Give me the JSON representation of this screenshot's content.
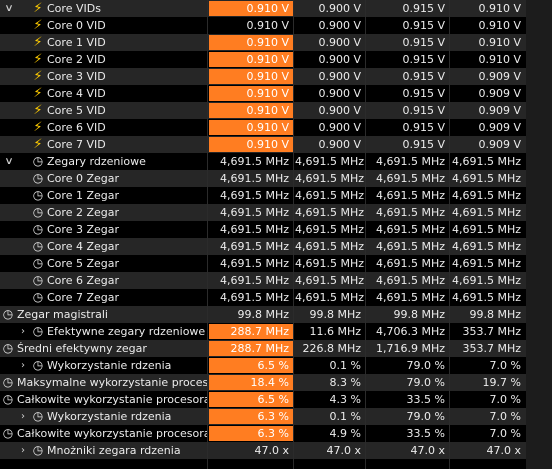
{
  "colors": {
    "highlight": "#ff7d21",
    "bolt": "#ffcc00",
    "row_odd": "#262626",
    "row_even": "#000000"
  },
  "rows": [
    {
      "label": "Core VIDs",
      "indent": 2,
      "icon": "bolt",
      "chevron": "down",
      "vals": [
        "0.910 V",
        "0.900 V",
        "0.915 V",
        "0.910 V"
      ],
      "hl": true
    },
    {
      "label": "Core 0 VID",
      "indent": 3,
      "icon": "bolt",
      "vals": [
        "0.910 V",
        "0.900 V",
        "0.915 V",
        "0.910 V"
      ],
      "hl": false
    },
    {
      "label": "Core 1 VID",
      "indent": 3,
      "icon": "bolt",
      "vals": [
        "0.910 V",
        "0.900 V",
        "0.915 V",
        "0.910 V"
      ],
      "hl": true
    },
    {
      "label": "Core 2 VID",
      "indent": 3,
      "icon": "bolt",
      "vals": [
        "0.910 V",
        "0.900 V",
        "0.915 V",
        "0.910 V"
      ],
      "hl": true
    },
    {
      "label": "Core 3 VID",
      "indent": 3,
      "icon": "bolt",
      "vals": [
        "0.910 V",
        "0.900 V",
        "0.915 V",
        "0.909 V"
      ],
      "hl": true
    },
    {
      "label": "Core 4 VID",
      "indent": 3,
      "icon": "bolt",
      "vals": [
        "0.910 V",
        "0.900 V",
        "0.915 V",
        "0.909 V"
      ],
      "hl": true
    },
    {
      "label": "Core 5 VID",
      "indent": 3,
      "icon": "bolt",
      "vals": [
        "0.910 V",
        "0.900 V",
        "0.915 V",
        "0.909 V"
      ],
      "hl": true
    },
    {
      "label": "Core 6 VID",
      "indent": 3,
      "icon": "bolt",
      "vals": [
        "0.910 V",
        "0.900 V",
        "0.915 V",
        "0.909 V"
      ],
      "hl": true
    },
    {
      "label": "Core 7 VID",
      "indent": 3,
      "icon": "bolt",
      "vals": [
        "0.910 V",
        "0.900 V",
        "0.915 V",
        "0.909 V"
      ],
      "hl": true
    },
    {
      "label": "Zegary rdzeniowe",
      "indent": 2,
      "icon": "clock",
      "chevron": "down",
      "vals": [
        "4,691.5 MHz",
        "4,691.5 MHz",
        "4,691.5 MHz",
        "4,691.5 MHz"
      ],
      "hl": false
    },
    {
      "label": "Core 0 Zegar",
      "indent": 3,
      "icon": "clock",
      "vals": [
        "4,691.5 MHz",
        "4,691.5 MHz",
        "4,691.5 MHz",
        "4,691.5 MHz"
      ],
      "hl": false
    },
    {
      "label": "Core 1 Zegar",
      "indent": 3,
      "icon": "clock",
      "vals": [
        "4,691.5 MHz",
        "4,691.5 MHz",
        "4,691.5 MHz",
        "4,691.5 MHz"
      ],
      "hl": false
    },
    {
      "label": "Core 2 Zegar",
      "indent": 3,
      "icon": "clock",
      "vals": [
        "4,691.5 MHz",
        "4,691.5 MHz",
        "4,691.5 MHz",
        "4,691.5 MHz"
      ],
      "hl": false
    },
    {
      "label": "Core 3 Zegar",
      "indent": 3,
      "icon": "clock",
      "vals": [
        "4,691.5 MHz",
        "4,691.5 MHz",
        "4,691.5 MHz",
        "4,691.5 MHz"
      ],
      "hl": false
    },
    {
      "label": "Core 4 Zegar",
      "indent": 3,
      "icon": "clock",
      "vals": [
        "4,691.5 MHz",
        "4,691.5 MHz",
        "4,691.5 MHz",
        "4,691.5 MHz"
      ],
      "hl": false
    },
    {
      "label": "Core 5 Zegar",
      "indent": 3,
      "icon": "clock",
      "vals": [
        "4,691.5 MHz",
        "4,691.5 MHz",
        "4,691.5 MHz",
        "4,691.5 MHz"
      ],
      "hl": false
    },
    {
      "label": "Core 6 Zegar",
      "indent": 3,
      "icon": "clock",
      "vals": [
        "4,691.5 MHz",
        "4,691.5 MHz",
        "4,691.5 MHz",
        "4,691.5 MHz"
      ],
      "hl": false
    },
    {
      "label": "Core 7 Zegar",
      "indent": 3,
      "icon": "clock",
      "vals": [
        "4,691.5 MHz",
        "4,691.5 MHz",
        "4,691.5 MHz",
        "4,691.5 MHz"
      ],
      "hl": false
    },
    {
      "label": "Zegar magistrali",
      "indent": 0,
      "icon": "clock",
      "vals": [
        "99.8 MHz",
        "99.8 MHz",
        "99.8 MHz",
        "99.8 MHz"
      ],
      "hl": false
    },
    {
      "label": "Efektywne zegary rdzeniowe",
      "indent": 1,
      "icon": "clock",
      "chevron": "right",
      "vals": [
        "288.7 MHz",
        "11.6 MHz",
        "4,706.3 MHz",
        "353.7 MHz"
      ],
      "hl": true
    },
    {
      "label": "Średni efektywny zegar",
      "indent": 0,
      "icon": "clock",
      "vals": [
        "288.7 MHz",
        "226.8 MHz",
        "1,716.9 MHz",
        "353.7 MHz"
      ],
      "hl": true
    },
    {
      "label": "Wykorzystanie rdzenia",
      "indent": 1,
      "icon": "clock",
      "chevron": "right",
      "vals": [
        "6.5 %",
        "0.1 %",
        "79.0 %",
        "7.0 %"
      ],
      "hl": true
    },
    {
      "label": "Maksymalne wykorzystanie procesora",
      "indent": 0,
      "icon": "clock",
      "vals": [
        "18.4 %",
        "8.3 %",
        "79.0 %",
        "19.7 %"
      ],
      "hl": true
    },
    {
      "label": "Całkowite wykorzystanie procesora",
      "indent": 0,
      "icon": "clock",
      "vals": [
        "6.5 %",
        "4.3 %",
        "33.5 %",
        "7.0 %"
      ],
      "hl": true
    },
    {
      "label": "Wykorzystanie rdzenia",
      "indent": 1,
      "icon": "clock",
      "chevron": "right",
      "vals": [
        "6.3 %",
        "0.1 %",
        "79.0 %",
        "7.0 %"
      ],
      "hl": true
    },
    {
      "label": "Całkowite wykorzystanie procesora",
      "indent": 0,
      "icon": "clock",
      "vals": [
        "6.3 %",
        "4.9 %",
        "33.5 %",
        "7.0 %"
      ],
      "hl": true
    },
    {
      "label": "Mnożniki zegara rdzenia",
      "indent": 1,
      "icon": "clock",
      "chevron": "right",
      "vals": [
        "47.0 x",
        "47.0 x",
        "47.0 x",
        "47.0 x"
      ],
      "hl": false
    }
  ]
}
